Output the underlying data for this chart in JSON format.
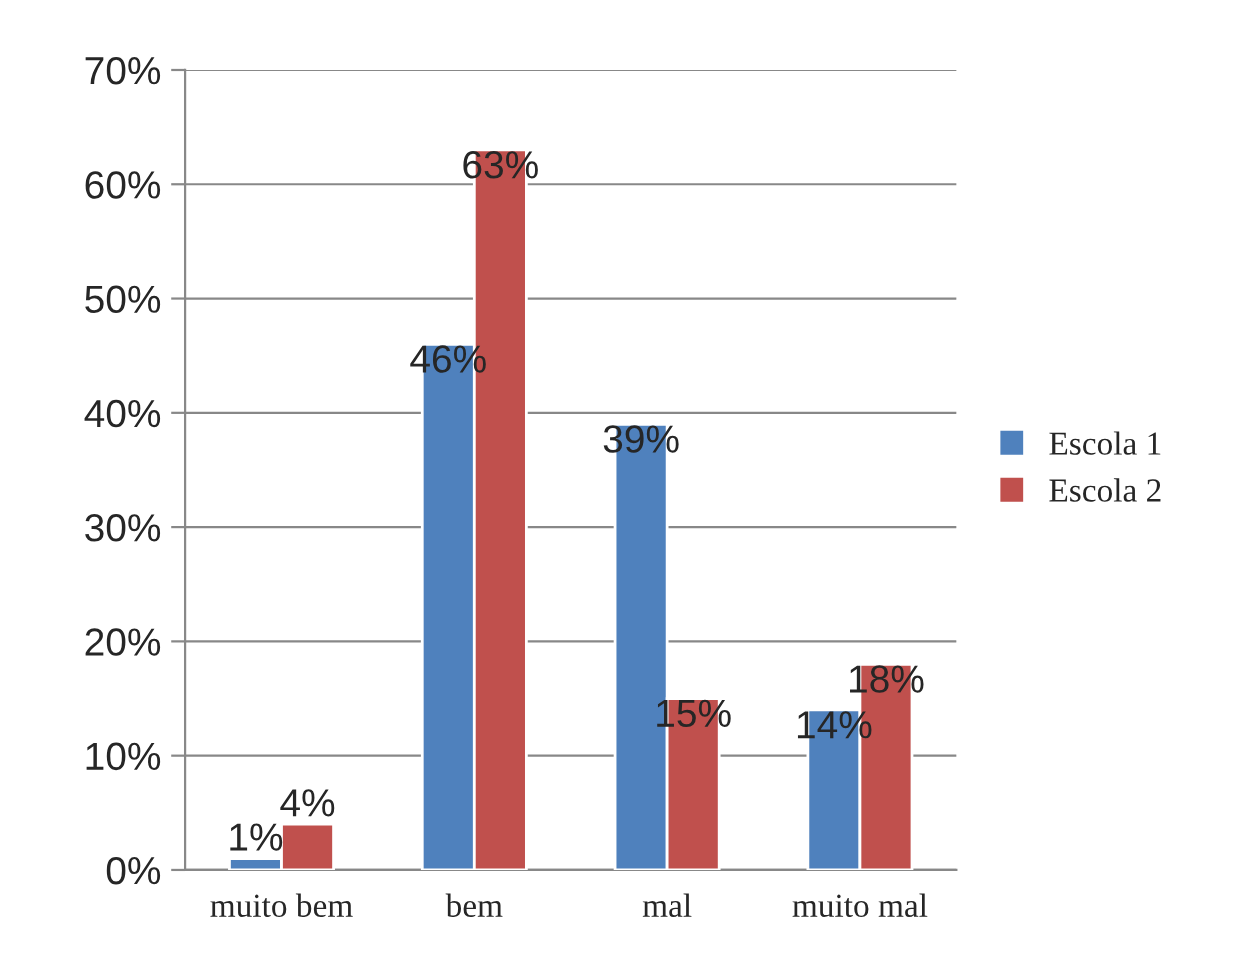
{
  "chart_data": {
    "type": "bar",
    "categories": [
      "muito bem",
      "bem",
      "mal",
      "muito mal"
    ],
    "series": [
      {
        "name": "Escola 1",
        "color": "#4f81bd",
        "values": [
          1,
          46,
          39,
          14
        ],
        "value_labels": [
          "1%",
          "46%",
          "39%",
          "14%"
        ]
      },
      {
        "name": "Escola 2",
        "color": "#c0504d",
        "values": [
          4,
          63,
          15,
          18
        ],
        "value_labels": [
          "4%",
          "63%",
          "15%",
          "18%"
        ]
      }
    ],
    "ylim": [
      0,
      70
    ],
    "yticks": [
      {
        "value": 0,
        "label": "0%"
      },
      {
        "value": 10,
        "label": "10%"
      },
      {
        "value": 20,
        "label": "20%"
      },
      {
        "value": 30,
        "label": "30%"
      },
      {
        "value": 40,
        "label": "40%"
      },
      {
        "value": 50,
        "label": "50%"
      },
      {
        "value": 60,
        "label": "60%"
      },
      {
        "value": 70,
        "label": "70%"
      }
    ],
    "grid": "y",
    "legend": "right"
  }
}
